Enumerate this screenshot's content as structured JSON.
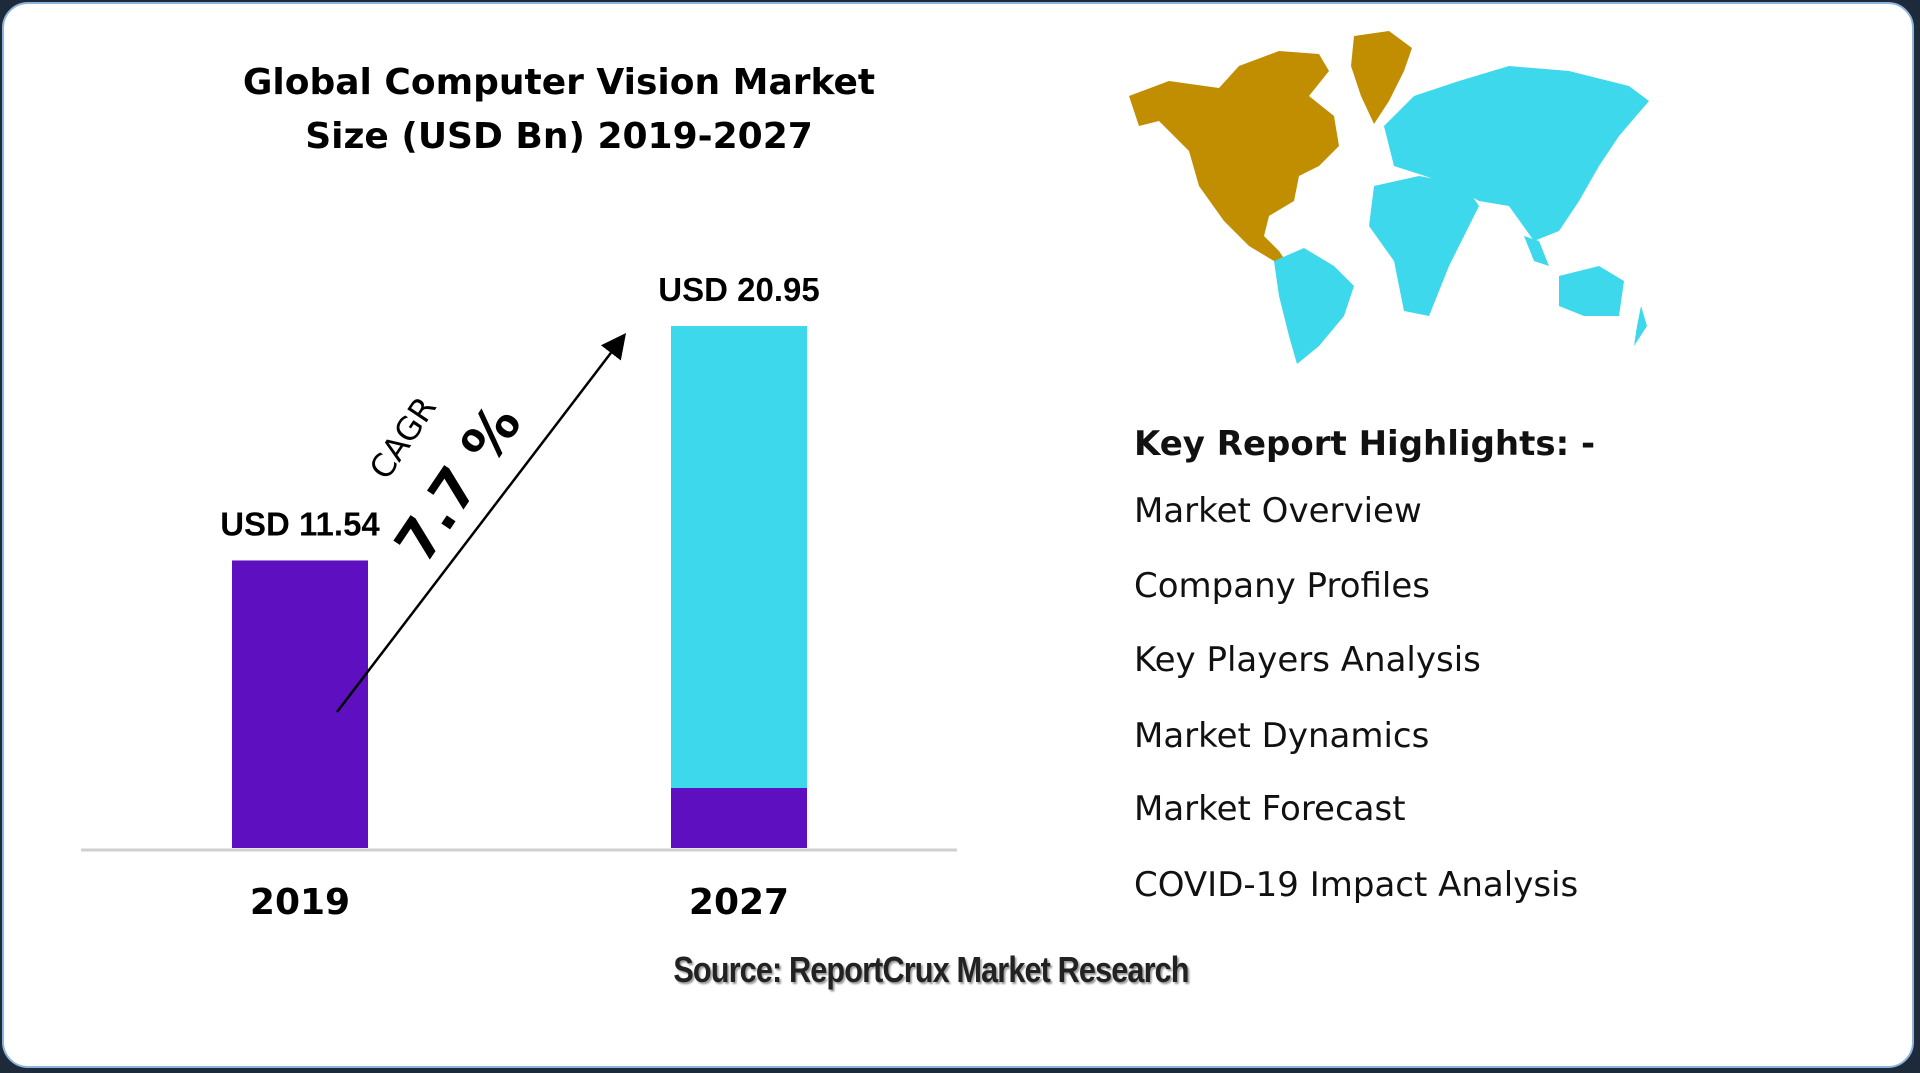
{
  "chart_data": {
    "type": "bar",
    "title": "Global Computer Vision Market Size (USD Bn) 2019-2027",
    "title_lines": [
      "Global Computer Vision Market",
      "Size (USD Bn) 2019-2027"
    ],
    "categories": [
      "2019",
      "2027"
    ],
    "values": [
      11.54,
      20.95
    ],
    "data_labels": [
      "USD 11.54",
      "USD 20.95"
    ],
    "ylim": [
      0,
      20.95
    ],
    "grid": false,
    "annotation": {
      "label": "CAGR",
      "value": "7.7 %"
    },
    "colors": {
      "base": "#5e10c0",
      "growth": "#3dd8ec",
      "axis": "#d0d0d0"
    }
  },
  "map": {
    "highlight_color": "#c08e00",
    "other_color": "#3dd8ec",
    "highlighted_region": "North America"
  },
  "highlights": {
    "heading": "Key Report Highlights: -",
    "items": [
      "Market Overview",
      "Company Profiles",
      "Key Players Analysis",
      "Market Dynamics",
      "Market Forecast",
      "COVID-19 Impact Analysis"
    ]
  },
  "source": "Source: ReportCrux Market Research"
}
